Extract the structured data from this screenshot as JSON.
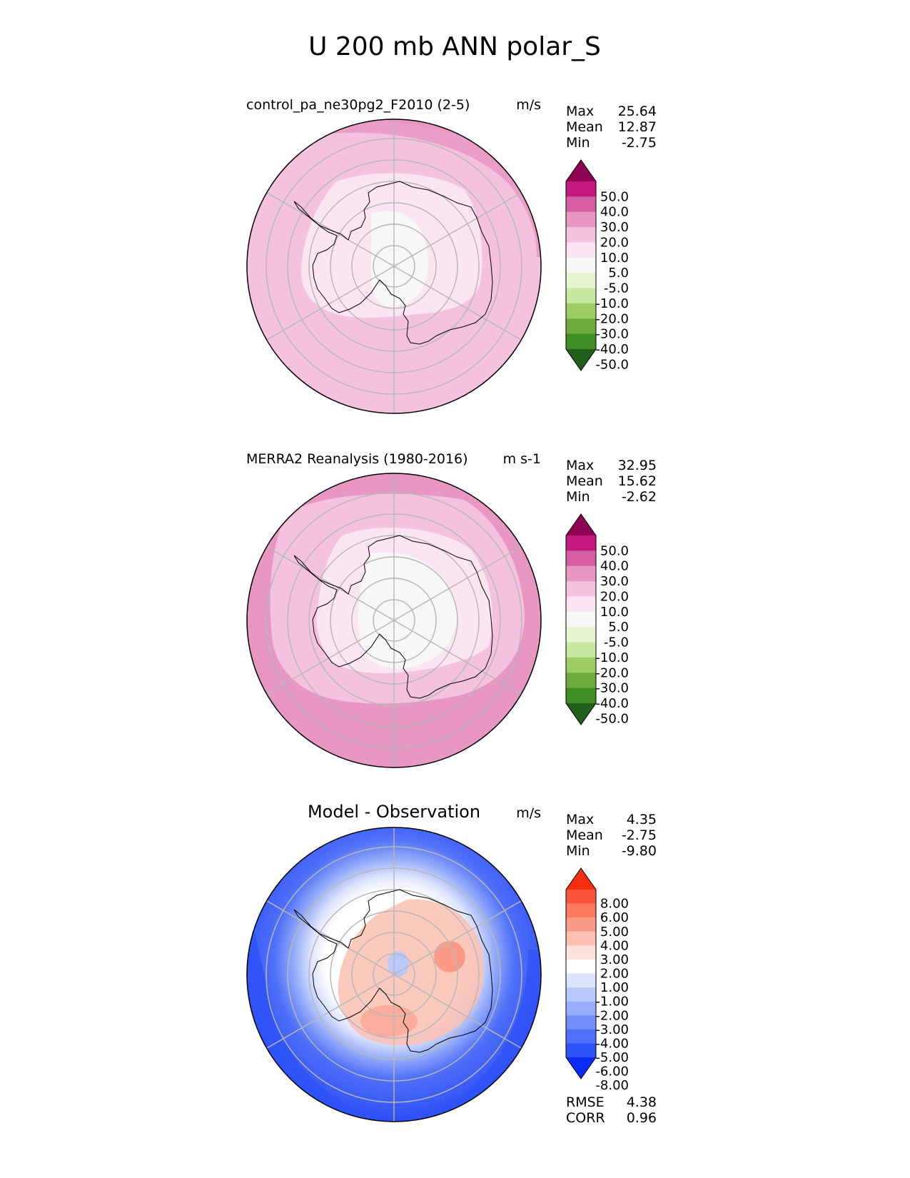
{
  "figure_title": "U 200 mb ANN polar_S",
  "colors": {
    "background": "#ffffff",
    "grid": "#b8b8b8",
    "coast": "#000000",
    "field_cmap": [
      "#21601a",
      "#3e8e22",
      "#6cab3b",
      "#9ccd64",
      "#c8e7a3",
      "#e6f5d0",
      "#f7f7f7",
      "#fbe5f0",
      "#f4c2de",
      "#e897c3",
      "#d65ea4",
      "#c3197e",
      "#8e0152"
    ],
    "diff_cmap": [
      "#0a2bf7",
      "#2d52f7",
      "#4f70f8",
      "#7290f8",
      "#96adf9",
      "#b9c9fb",
      "#dde3fd",
      "#ffffff",
      "#fde1db",
      "#fcbfb2",
      "#fb9b87",
      "#fa7960",
      "#f8553a",
      "#f62e10"
    ]
  },
  "panels": [
    {
      "id": "test",
      "left_title": "control_pa_ne30pg2_F2010 (2-5)",
      "units": "m/s",
      "stats": {
        "max_label": "Max",
        "max": "25.64",
        "mean_label": "Mean",
        "mean": "12.87",
        "min_label": "Min",
        "min": "-2.75"
      },
      "colorbar_ticks": [
        "50.0",
        "40.0",
        "30.0",
        "20.0",
        "10.0",
        "5.0",
        "-5.0",
        "-10.0",
        "-20.0",
        "-30.0",
        "-40.0",
        "-50.0"
      ],
      "field": {
        "background_level_color": "#f4c2de",
        "regions": [
          {
            "level_color": "#e897c3",
            "shape": "outer_ring_north_east"
          },
          {
            "level_color": "#fbe5f0",
            "shape": "inner_pale_zone"
          },
          {
            "level_color": "#f7f7f7",
            "shape": "polar_core"
          }
        ]
      }
    },
    {
      "id": "reference",
      "left_title": "MERRA2 Reanalysis (1980-2016)",
      "units": "m s-1",
      "stats": {
        "max_label": "Max",
        "max": "32.95",
        "mean_label": "Mean",
        "mean": "15.62",
        "min_label": "Min",
        "min": "-2.62"
      },
      "colorbar_ticks": [
        "50.0",
        "40.0",
        "30.0",
        "20.0",
        "10.0",
        "5.0",
        "-5.0",
        "-10.0",
        "-20.0",
        "-30.0",
        "-40.0",
        "-50.0"
      ],
      "field": {
        "background_level_color": "#e897c3",
        "regions": [
          {
            "level_color": "#d65ea4",
            "shape": "outer_ring_north_east"
          },
          {
            "level_color": "#f4c2de",
            "shape": "middle_band"
          },
          {
            "level_color": "#fbe5f0",
            "shape": "inner_pale_zone"
          },
          {
            "level_color": "#f7f7f7",
            "shape": "polar_core"
          }
        ]
      }
    },
    {
      "id": "diff",
      "center_title": "Model - Observation",
      "units": "m/s",
      "stats": {
        "max_label": "Max",
        "max": "4.35",
        "mean_label": "Mean",
        "mean": "-2.75",
        "min_label": "Min",
        "min": "-9.80"
      },
      "colorbar_ticks": [
        "8.00",
        "6.00",
        "5.00",
        "4.00",
        "3.00",
        "2.00",
        "1.00",
        "-1.00",
        "-2.00",
        "-3.00",
        "-4.00",
        "-5.00",
        "-6.00",
        "-8.00"
      ],
      "metrics": {
        "rmse_label": "RMSE",
        "rmse": "4.38",
        "corr_label": "CORR",
        "corr": "0.96"
      }
    }
  ]
}
